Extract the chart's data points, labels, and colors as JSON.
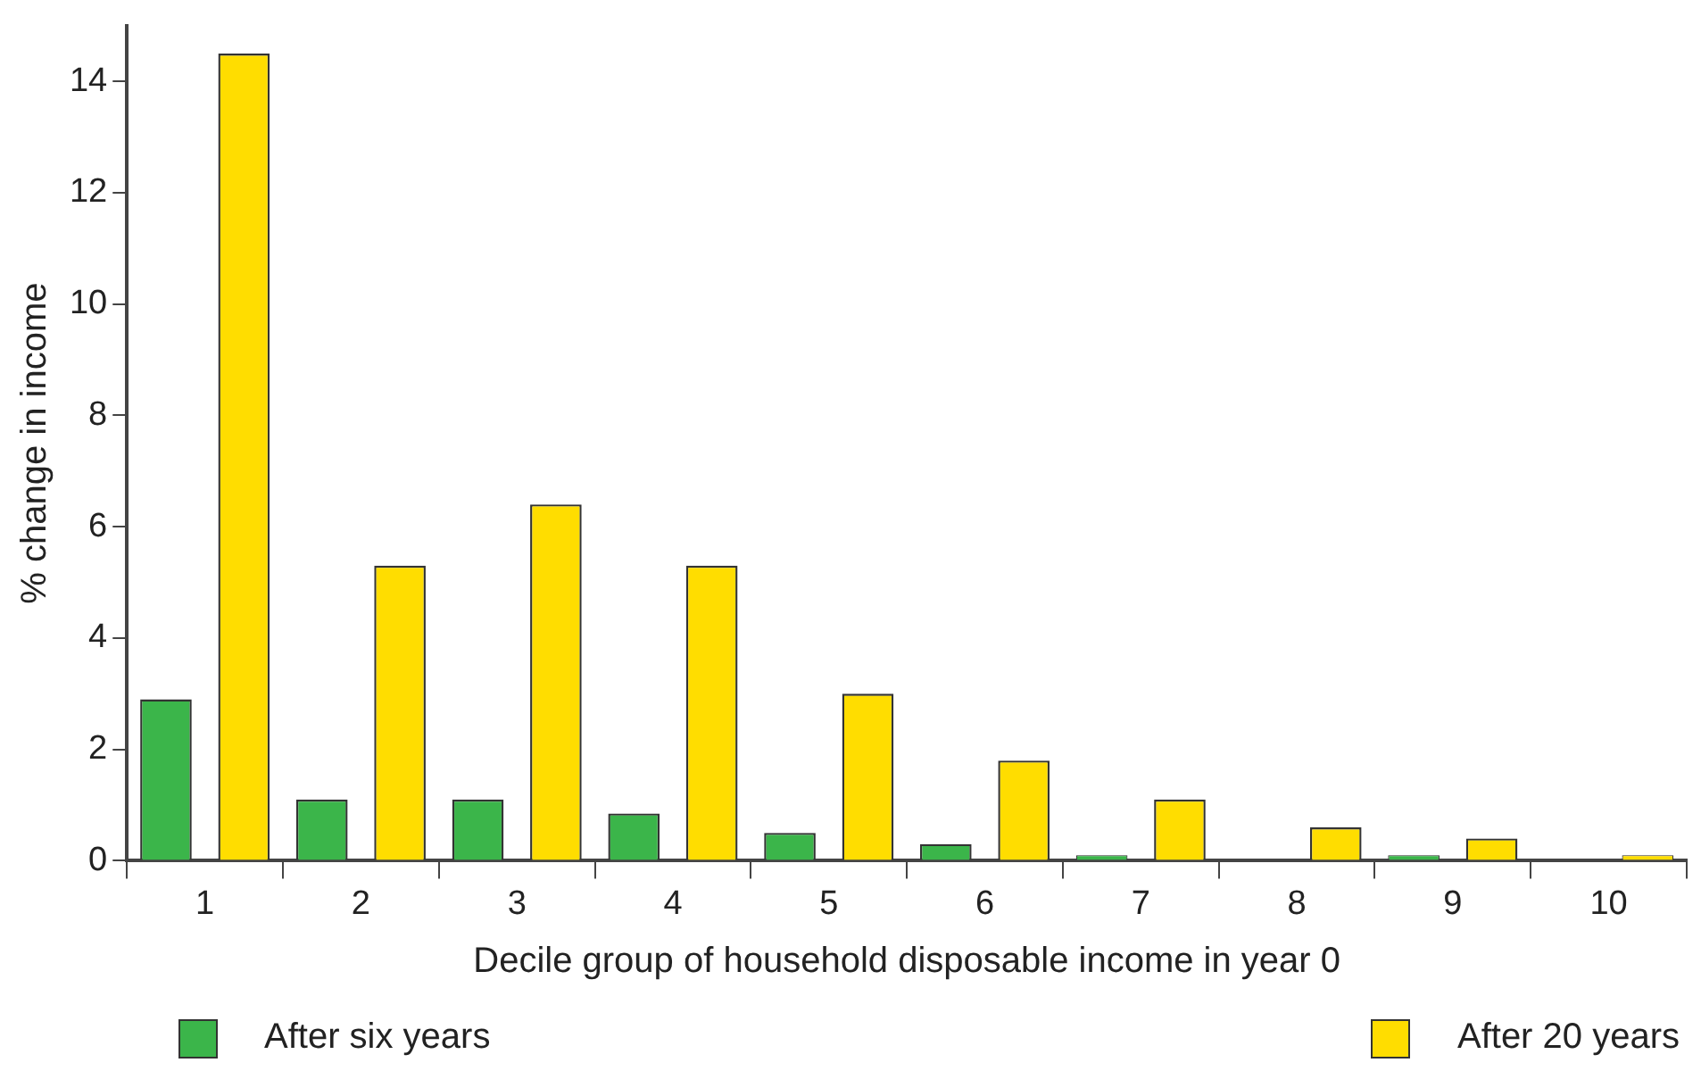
{
  "chart_data": {
    "type": "bar",
    "xlabel": "Decile group of household disposable income in year 0",
    "ylabel": "% change in income",
    "categories": [
      "1",
      "2",
      "3",
      "4",
      "5",
      "6",
      "7",
      "8",
      "9",
      "10"
    ],
    "series": [
      {
        "name": "After six years",
        "color": "#3bb54a",
        "values": [
          2.9,
          1.1,
          1.1,
          0.85,
          0.5,
          0.3,
          0.1,
          0,
          0.1,
          0
        ]
      },
      {
        "name": "After 20 years",
        "color": "#ffdd00",
        "values": [
          14.5,
          5.3,
          6.4,
          5.3,
          3.0,
          1.8,
          1.1,
          0.6,
          0.4,
          0.1
        ]
      }
    ],
    "ylim": [
      0,
      15
    ],
    "yticks": [
      0,
      2,
      4,
      6,
      8,
      10,
      12,
      14
    ],
    "grid": false,
    "legend": "bottom"
  }
}
